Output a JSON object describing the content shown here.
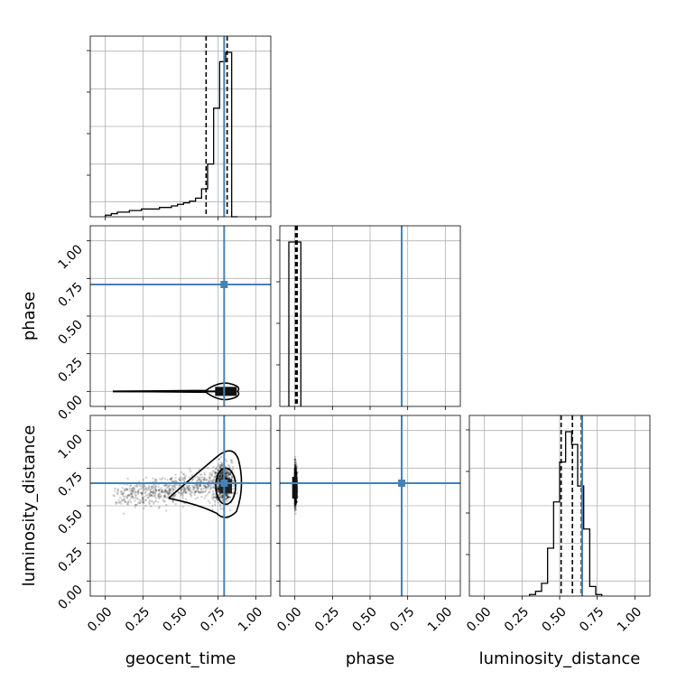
{
  "chart_data": {
    "type": "corner",
    "parameters": [
      "geocent_time",
      "phase",
      "luminosity_distance"
    ],
    "ranges": {
      "geocent_time": [
        -0.1,
        1.1
      ],
      "phase": [
        -0.1,
        1.1
      ],
      "luminosity_distance": [
        -0.1,
        1.1
      ]
    },
    "ticks": [
      0.0,
      0.25,
      0.5,
      0.75,
      1.0
    ],
    "tick_labels": [
      "0.00",
      "0.25",
      "0.50",
      "0.75",
      "1.00"
    ],
    "truths": {
      "geocent_time": 0.79,
      "phase": 0.71,
      "luminosity_distance": 0.65
    },
    "truth_color": "#4682b4",
    "grid": true,
    "histograms": [
      {
        "param": "geocent_time",
        "bin_edges": [
          0.0,
          0.04,
          0.08,
          0.12,
          0.16,
          0.2,
          0.24,
          0.28,
          0.32,
          0.36,
          0.4,
          0.44,
          0.48,
          0.52,
          0.56,
          0.6,
          0.64,
          0.68,
          0.72,
          0.76,
          0.8,
          0.84,
          0.88
        ],
        "counts": [
          1,
          2,
          3,
          3,
          4,
          4,
          5,
          5,
          5,
          6,
          6,
          7,
          8,
          9,
          10,
          12,
          18,
          34,
          70,
          100,
          106,
          0
        ],
        "quantiles": [
          0.67,
          0.79,
          0.81
        ]
      },
      {
        "param": "phase",
        "bin_edges": [
          -0.04,
          0.0,
          0.04
        ],
        "counts": [
          100,
          100
        ],
        "quantiles": [
          0.005,
          0.01,
          0.015
        ]
      },
      {
        "param": "luminosity_distance",
        "bin_edges": [
          0.3,
          0.34,
          0.38,
          0.42,
          0.46,
          0.5,
          0.54,
          0.58,
          0.62,
          0.66,
          0.7,
          0.74,
          0.78
        ],
        "counts": [
          1,
          3,
          8,
          30,
          59,
          84,
          103,
          95,
          69,
          42,
          6,
          1
        ],
        "quantiles": [
          0.51,
          0.585,
          0.645
        ]
      }
    ]
  }
}
